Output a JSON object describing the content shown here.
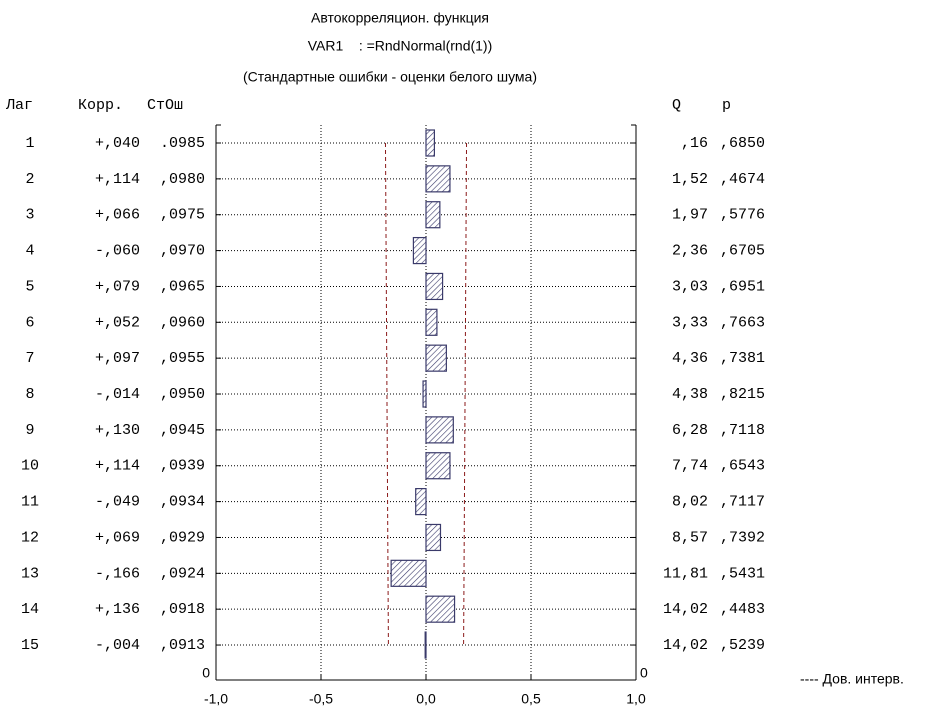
{
  "chart_data": {
    "type": "bar",
    "title": [
      "Автокорреляцион. функция",
      "VAR1    : =RndNormal(rnd(1))",
      "(Стандартные ошибки - оценки белого шума)"
    ],
    "columns": {
      "lag": "Лаг",
      "corr": "Корр.",
      "se": "СтОш",
      "q": "Q",
      "p": "p"
    },
    "categories": [
      "1",
      "2",
      "3",
      "4",
      "5",
      "6",
      "7",
      "8",
      "9",
      "10",
      "11",
      "12",
      "13",
      "14",
      "15"
    ],
    "values": [
      0.04,
      0.114,
      0.066,
      -0.06,
      0.079,
      0.052,
      0.097,
      -0.014,
      0.13,
      0.114,
      -0.049,
      0.069,
      -0.166,
      0.136,
      -0.004
    ],
    "value_labels": [
      "+,040",
      "+,114",
      "+,066",
      "-,060",
      "+,079",
      "+,052",
      "+,097",
      "-,014",
      "+,130",
      "+,114",
      "-,049",
      "+,069",
      "-,166",
      "+,136",
      "-,004"
    ],
    "std_err": [
      ".0985",
      ",0980",
      ",0975",
      ",0970",
      ",0965",
      ",0960",
      ",0955",
      ",0950",
      ",0945",
      ",0939",
      ",0934",
      ",0929",
      ",0924",
      ",0918",
      ",0913"
    ],
    "q": [
      ",16",
      "1,52",
      "1,97",
      "2,36",
      "3,03",
      "3,33",
      "4,36",
      "4,38",
      "6,28",
      "7,74",
      "8,02",
      "8,57",
      "11,81",
      "14,02",
      "14,02"
    ],
    "p": [
      ",6850",
      ",4674",
      ",5776",
      ",6705",
      ",6951",
      ",7663",
      ",7381",
      ",8215",
      ",7118",
      ",6543",
      ",7117",
      ",7392",
      ",5431",
      ",4483",
      ",5239"
    ],
    "conf_interval": {
      "name": "---- Дов. интерв.",
      "color": "#8b1a1a",
      "values": [
        0.193,
        0.192,
        0.191,
        0.19,
        0.189,
        0.188,
        0.187,
        0.186,
        0.185,
        0.184,
        0.183,
        0.182,
        0.181,
        0.18,
        0.179
      ]
    },
    "color": "#3a3a6a",
    "xlim": [
      -1,
      1
    ],
    "xticks": [
      {
        "value": -1,
        "label": "-1,0"
      },
      {
        "value": -0.5,
        "label": "-0,5"
      },
      {
        "value": 0,
        "label": "0,0"
      },
      {
        "value": 0.5,
        "label": "0,5"
      },
      {
        "value": 1,
        "label": "1,0"
      }
    ],
    "axis_zero_label": "0",
    "grid": true
  }
}
